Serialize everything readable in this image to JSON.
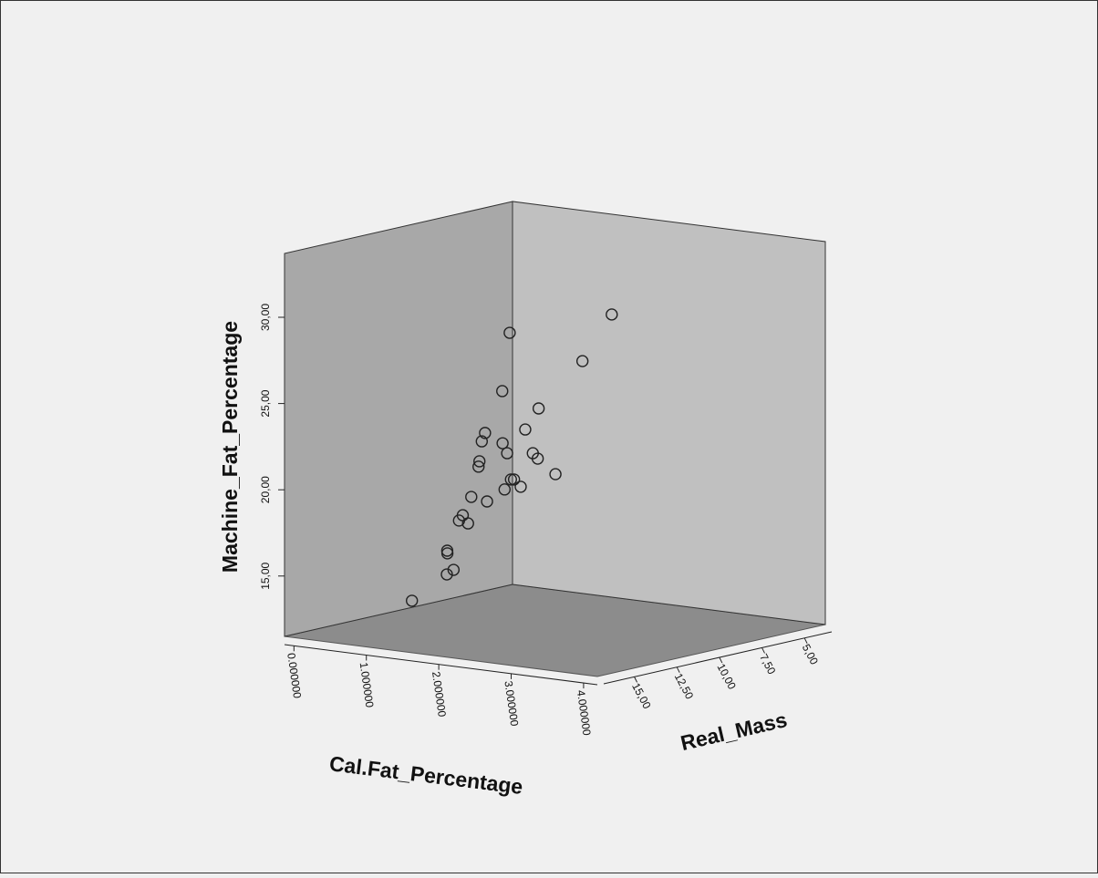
{
  "chart_data": {
    "type": "scatter3d",
    "x_label": "Cal.Fat_Percentage",
    "y_label": "Machine_Fat_Percentage",
    "z_label": "Real_Mass",
    "x": [
      0.37,
      0.38,
      0.63,
      0.23,
      0.7,
      1.02,
      0.6,
      0.83,
      0.56,
      1.25,
      1.29,
      0.83,
      1.02,
      0.75,
      1.46,
      1.72,
      1.15,
      1.37,
      1.02,
      1.58,
      1.78,
      1.4,
      1.62,
      1.41,
      1.95,
      2.12,
      1.88,
      2.41,
      2.5
    ],
    "y": [
      12.63,
      13.71,
      14.26,
      14.7,
      15.56,
      17.63,
      17.26,
      17.06,
      18.15,
      18.71,
      20.9,
      20.51,
      21.92,
      21.96,
      25.22,
      28.89,
      21.73,
      21.42,
      18.83,
      20.16,
      20.42,
      19.34,
      22.93,
      21.14,
      21.57,
      24.72,
      20.33,
      27.32,
      29.77
    ],
    "z": [
      11.44,
      9.43,
      10.1,
      8.76,
      10.77,
      11.44,
      9.43,
      10.1,
      8.76,
      10.77,
      11.44,
      9.43,
      10.1,
      8.76,
      10.77,
      11.44,
      9.43,
      10.1,
      8.76,
      10.77,
      11.44,
      9.43,
      10.1,
      8.76,
      10.77,
      11.44,
      9.43,
      10.1,
      8.76
    ],
    "xlim": [
      -0.13,
      4.19
    ],
    "ylim": [
      11.5,
      33.7
    ],
    "zlim": [
      16.8,
      3.4
    ],
    "xticks": [
      {
        "value": 0,
        "label": "0.000000"
      },
      {
        "value": 1,
        "label": "1.000000"
      },
      {
        "value": 2,
        "label": "2.000000"
      },
      {
        "value": 3,
        "label": "3.000000"
      },
      {
        "value": 4,
        "label": "4.000000"
      }
    ],
    "yticks": [
      {
        "value": 15,
        "label": "15,00"
      },
      {
        "value": 20,
        "label": "20,00"
      },
      {
        "value": 25,
        "label": "25,00"
      },
      {
        "value": 30,
        "label": "30,00"
      }
    ],
    "zticks": [
      {
        "value": 15,
        "label": "15,00"
      },
      {
        "value": 12.5,
        "label": "12,50"
      },
      {
        "value": 10,
        "label": "10,00"
      },
      {
        "value": 7.5,
        "label": "7,50"
      },
      {
        "value": 5,
        "label": "5,00"
      }
    ],
    "marker_color": "#222222"
  }
}
